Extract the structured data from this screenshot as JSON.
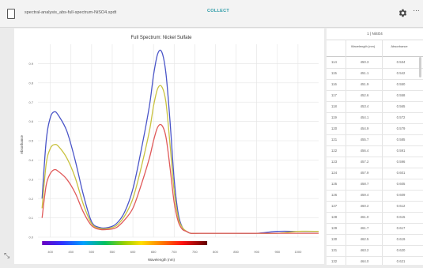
{
  "file": {
    "name": "spectral-analysis_abs-full-spectrum-NiSO4.spdt",
    "icon": "file-icon"
  },
  "toolbar": {
    "collect_label": "COLLECT",
    "settings_icon": "gear-icon",
    "more_icon": "more-icon",
    "more_glyph": "···"
  },
  "bottom": {
    "icon": "chart-tool-icon",
    "glyph": "⤡"
  },
  "chart_data": {
    "type": "line",
    "title": "Full Spectrum: Nickel Sulfate",
    "xlabel": "Wavelength (nm)",
    "ylabel": "Absorbance",
    "xlim": [
      370,
      1050
    ],
    "ylim": [
      0,
      1.0
    ],
    "x_ticks": [
      400,
      450,
      500,
      550,
      600,
      650,
      700,
      750,
      800,
      850,
      900,
      950,
      1000
    ],
    "x_tick_labels": [
      "400",
      "450",
      "500",
      "550",
      "600",
      "650",
      "700",
      "750",
      "800",
      "850",
      "900",
      "950",
      "1000"
    ],
    "y_ticks": [
      0,
      0.1,
      0.2,
      0.3,
      0.4,
      0.5,
      0.6,
      0.7,
      0.8,
      0.9
    ],
    "y_tick_labels": [
      "0.0",
      "0.1",
      "0.2",
      "0.3",
      "0.4",
      "0.5",
      "0.6",
      "0.7",
      "0.8",
      "0.9"
    ],
    "grid": true,
    "spectrum_bar": {
      "from": 380,
      "to": 780
    },
    "x": [
      380,
      390,
      400,
      410,
      420,
      440,
      460,
      480,
      500,
      520,
      540,
      560,
      580,
      600,
      620,
      640,
      650,
      660,
      670,
      680,
      690,
      700,
      710,
      720,
      730,
      740,
      760,
      800,
      850,
      900,
      950,
      1000,
      1050
    ],
    "series": [
      {
        "color": "#4a55c8",
        "values": [
          0.2,
          0.5,
          0.62,
          0.65,
          0.63,
          0.55,
          0.4,
          0.22,
          0.08,
          0.05,
          0.05,
          0.07,
          0.13,
          0.25,
          0.45,
          0.68,
          0.84,
          0.95,
          0.96,
          0.85,
          0.6,
          0.3,
          0.12,
          0.05,
          0.03,
          0.02,
          0.02,
          0.02,
          0.02,
          0.02,
          0.03,
          0.03,
          0.03
        ]
      },
      {
        "color": "#c9c240",
        "values": [
          0.15,
          0.38,
          0.46,
          0.48,
          0.47,
          0.41,
          0.31,
          0.17,
          0.07,
          0.045,
          0.045,
          0.06,
          0.11,
          0.2,
          0.36,
          0.55,
          0.68,
          0.77,
          0.78,
          0.7,
          0.48,
          0.24,
          0.1,
          0.05,
          0.03,
          0.02,
          0.02,
          0.02,
          0.02,
          0.02,
          0.02,
          0.03,
          0.03
        ]
      },
      {
        "color": "#e05a5a",
        "values": [
          0.1,
          0.27,
          0.33,
          0.35,
          0.34,
          0.3,
          0.23,
          0.13,
          0.06,
          0.04,
          0.04,
          0.05,
          0.09,
          0.15,
          0.27,
          0.41,
          0.5,
          0.57,
          0.58,
          0.52,
          0.36,
          0.18,
          0.08,
          0.04,
          0.03,
          0.02,
          0.02,
          0.02,
          0.02,
          0.02,
          0.02,
          0.02,
          0.02
        ]
      }
    ]
  },
  "table": {
    "title": "1 | NiSO4",
    "headers": [
      "Wavelength (nm)",
      "Absorbance"
    ],
    "rows": [
      {
        "idx": "114",
        "wl": "450.3",
        "abs": "0.534"
      },
      {
        "idx": "115",
        "wl": "451.1",
        "abs": "0.542"
      },
      {
        "idx": "116",
        "wl": "451.9",
        "abs": "0.550"
      },
      {
        "idx": "117",
        "wl": "452.6",
        "abs": "0.558"
      },
      {
        "idx": "118",
        "wl": "453.4",
        "abs": "0.565"
      },
      {
        "idx": "119",
        "wl": "454.1",
        "abs": "0.572"
      },
      {
        "idx": "120",
        "wl": "454.9",
        "abs": "0.579"
      },
      {
        "idx": "121",
        "wl": "455.7",
        "abs": "0.585"
      },
      {
        "idx": "122",
        "wl": "456.4",
        "abs": "0.591"
      },
      {
        "idx": "123",
        "wl": "457.2",
        "abs": "0.596"
      },
      {
        "idx": "124",
        "wl": "457.9",
        "abs": "0.601"
      },
      {
        "idx": "125",
        "wl": "458.7",
        "abs": "0.605"
      },
      {
        "idx": "126",
        "wl": "459.4",
        "abs": "0.609"
      },
      {
        "idx": "127",
        "wl": "460.2",
        "abs": "0.612"
      },
      {
        "idx": "128",
        "wl": "461.0",
        "abs": "0.615"
      },
      {
        "idx": "129",
        "wl": "461.7",
        "abs": "0.617"
      },
      {
        "idx": "130",
        "wl": "462.5",
        "abs": "0.619"
      },
      {
        "idx": "131",
        "wl": "463.2",
        "abs": "0.620"
      },
      {
        "idx": "132",
        "wl": "464.0",
        "abs": "0.621"
      }
    ]
  }
}
